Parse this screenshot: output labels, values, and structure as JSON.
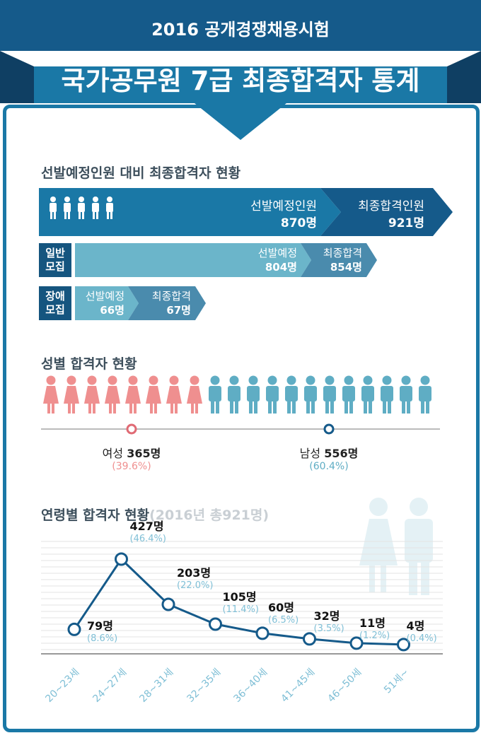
{
  "header": {
    "subtitle": "2016 공개경쟁채용시험",
    "title": "국가공무원 7급 최종합격자 통계"
  },
  "section1": {
    "title": "선발예정인원 대비 최종합격자 현황",
    "total": {
      "planned_label": "선발예정인원",
      "planned_value": "870명",
      "final_label": "최종합격인원",
      "final_value": "921명"
    },
    "general": {
      "label_line1": "일반",
      "label_line2": "모집",
      "planned_label": "선발예정",
      "planned_value": "804명",
      "final_label": "최종합격",
      "final_value": "854명"
    },
    "disabled": {
      "label_line1": "장애",
      "label_line2": "모집",
      "planned_label": "선발예정",
      "planned_value": "66명",
      "final_label": "최종합격",
      "final_value": "67명"
    }
  },
  "section2": {
    "title": "성별 합격자 현황",
    "female": {
      "label": "여성",
      "count": "365명",
      "pct": "(39.6%)"
    },
    "male": {
      "label": "남성",
      "count": "556명",
      "pct": "(60.4%)"
    }
  },
  "section3": {
    "title": "연령별 합격자 현황",
    "title_suffix": "(2016년 총921명)"
  },
  "colors": {
    "dark_blue": "#155a8a",
    "teal": "#1a78a6",
    "light_teal": "#6bb5ca",
    "female": "#ef8f8f",
    "male": "#5fadc4"
  },
  "chart_data": {
    "type": "line",
    "categories": [
      "20~23세",
      "24~27세",
      "28~31세",
      "32~35세",
      "36~40세",
      "41~45세",
      "46~50세",
      "51세~"
    ],
    "values": [
      79,
      427,
      203,
      105,
      60,
      32,
      11,
      4
    ],
    "count_labels": [
      "79명",
      "427명",
      "203명",
      "105명",
      "60명",
      "32명",
      "11명",
      "4명"
    ],
    "pct_labels": [
      "(8.6%)",
      "(46.4%)",
      "(22.0%)",
      "(11.4%)",
      "(6.5%)",
      "(3.5%)",
      "(1.2%)",
      "(0.4%)"
    ],
    "title": "연령별 합격자 현황",
    "xlabel": "",
    "ylabel": "",
    "ylim": [
      0,
      500
    ],
    "grid": true
  }
}
